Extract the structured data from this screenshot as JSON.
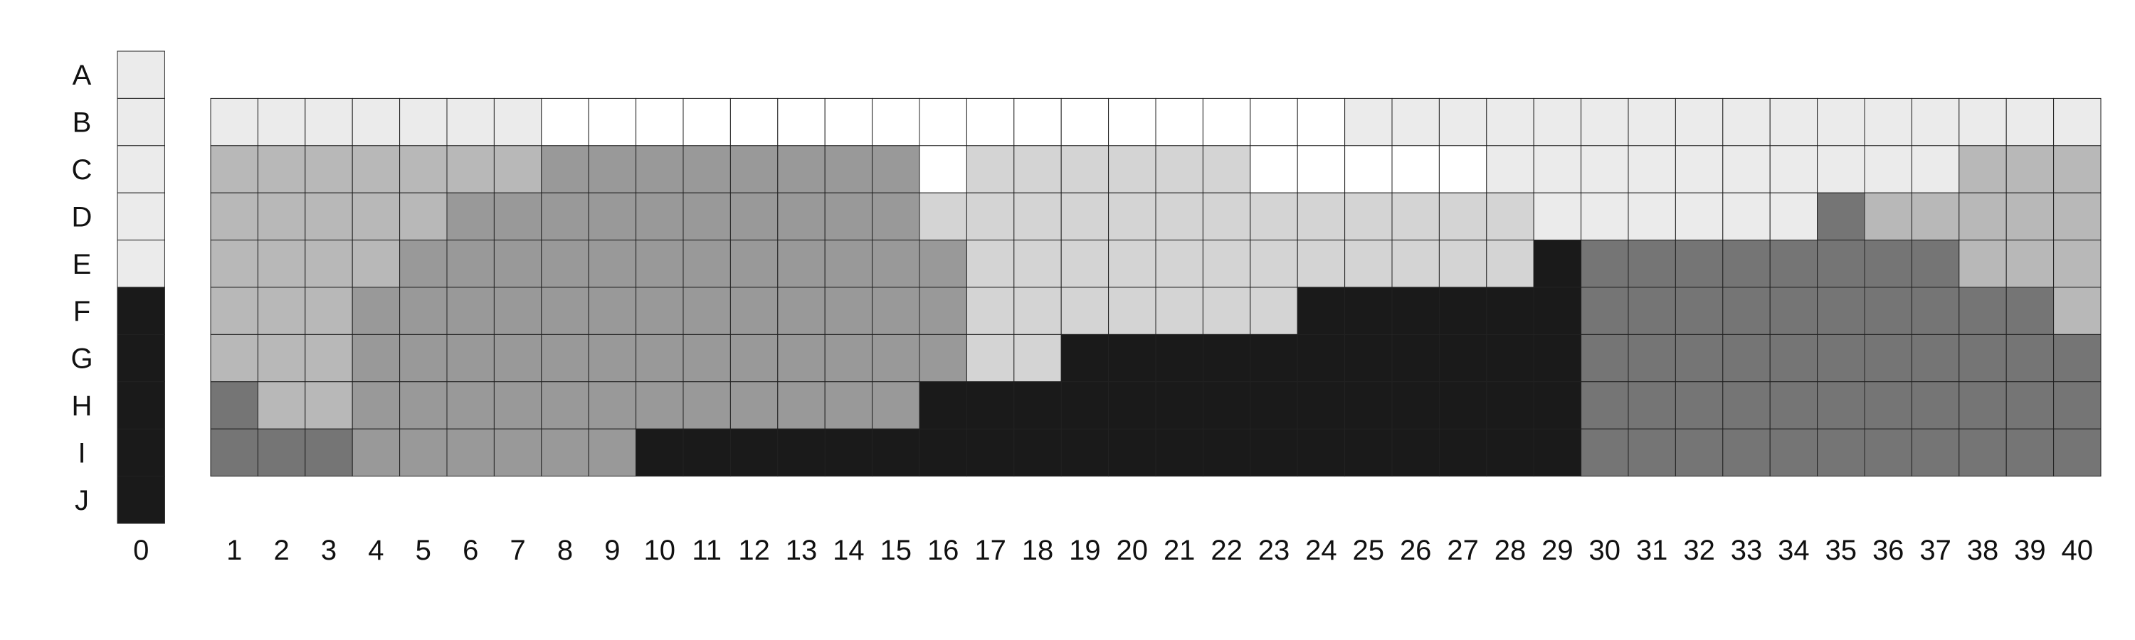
{
  "chart_data": {
    "type": "heatmap",
    "title": "",
    "xlabel": "",
    "ylabel": "",
    "grid": true,
    "row_labels": [
      "A",
      "B",
      "C",
      "D",
      "E",
      "F",
      "G",
      "H",
      "I",
      "J"
    ],
    "col_labels": [
      "0",
      "1",
      "2",
      "3",
      "4",
      "5",
      "6",
      "7",
      "8",
      "9",
      "10",
      "11",
      "12",
      "13",
      "14",
      "15",
      "16",
      "17",
      "18",
      "19",
      "20",
      "21",
      "22",
      "23",
      "24",
      "25",
      "26",
      "27",
      "28",
      "29",
      "30",
      "31",
      "32",
      "33",
      "34",
      "35",
      "36",
      "37",
      "38",
      "39",
      "40"
    ],
    "legend_column": {
      "label": "0",
      "levels": [
        1,
        1,
        1,
        1,
        1,
        6,
        6,
        6,
        6,
        6
      ]
    },
    "grid_rows": [
      "B",
      "C",
      "D",
      "E",
      "F",
      "G",
      "H",
      "I"
    ],
    "grid_columns_start": 1,
    "levels": [
      [
        1,
        1,
        1,
        1,
        1,
        1,
        1,
        0,
        0,
        0,
        0,
        0,
        0,
        0,
        0,
        0,
        0,
        0,
        0,
        0,
        0,
        0,
        0,
        0,
        1,
        1,
        1,
        1,
        1,
        1,
        1,
        1,
        1,
        1,
        1,
        1,
        1,
        1,
        1,
        1
      ],
      [
        3,
        3,
        3,
        3,
        3,
        3,
        3,
        4,
        4,
        4,
        4,
        4,
        4,
        4,
        4,
        0,
        2,
        2,
        2,
        2,
        2,
        2,
        0,
        0,
        0,
        0,
        0,
        1,
        1,
        1,
        1,
        1,
        1,
        1,
        1,
        1,
        1,
        3,
        3,
        3
      ],
      [
        3,
        3,
        3,
        3,
        3,
        4,
        4,
        4,
        4,
        4,
        4,
        4,
        4,
        4,
        4,
        2,
        2,
        2,
        2,
        2,
        2,
        2,
        2,
        2,
        2,
        2,
        2,
        2,
        1,
        1,
        1,
        1,
        1,
        1,
        5,
        3,
        3,
        3,
        3,
        3
      ],
      [
        3,
        3,
        3,
        3,
        4,
        4,
        4,
        4,
        4,
        4,
        4,
        4,
        4,
        4,
        4,
        4,
        2,
        2,
        2,
        2,
        2,
        2,
        2,
        2,
        2,
        2,
        2,
        2,
        6,
        5,
        5,
        5,
        5,
        5,
        5,
        5,
        5,
        3,
        3,
        3
      ],
      [
        3,
        3,
        3,
        4,
        4,
        4,
        4,
        4,
        4,
        4,
        4,
        4,
        4,
        4,
        4,
        4,
        2,
        2,
        2,
        2,
        2,
        2,
        2,
        6,
        6,
        6,
        6,
        6,
        6,
        5,
        5,
        5,
        5,
        5,
        5,
        5,
        5,
        5,
        5,
        3
      ],
      [
        3,
        3,
        3,
        4,
        4,
        4,
        4,
        4,
        4,
        4,
        4,
        4,
        4,
        4,
        4,
        4,
        2,
        2,
        6,
        6,
        6,
        6,
        6,
        6,
        6,
        6,
        6,
        6,
        6,
        5,
        5,
        5,
        5,
        5,
        5,
        5,
        5,
        5,
        5,
        5
      ],
      [
        5,
        3,
        3,
        4,
        4,
        4,
        4,
        4,
        4,
        4,
        4,
        4,
        4,
        4,
        4,
        6,
        6,
        6,
        6,
        6,
        6,
        6,
        6,
        6,
        6,
        6,
        6,
        6,
        6,
        5,
        5,
        5,
        5,
        5,
        5,
        5,
        5,
        5,
        5,
        5
      ],
      [
        5,
        5,
        5,
        4,
        4,
        4,
        4,
        4,
        4,
        6,
        6,
        6,
        6,
        6,
        6,
        6,
        6,
        6,
        6,
        6,
        6,
        6,
        6,
        6,
        6,
        6,
        6,
        6,
        6,
        5,
        5,
        5,
        5,
        5,
        5,
        5,
        5,
        5,
        5,
        5
      ]
    ],
    "colors": {
      "0": "#ffffff",
      "1": "#ebebeb",
      "2": "#d4d4d4",
      "3": "#b8b8b8",
      "4": "#999999",
      "5": "#757575",
      "6": "#1a1a1a"
    }
  }
}
